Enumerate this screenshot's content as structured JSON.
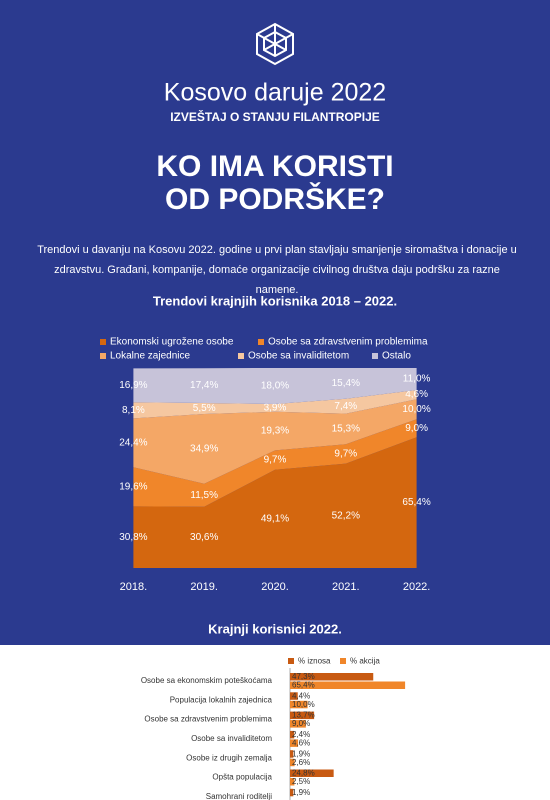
{
  "header": {
    "title": "Kosovo daruje 2022",
    "subtitle": "IZVEŠTAJ O STANJU FILANTROPIJE",
    "headline": [
      "KO IMA KORISTI",
      "OD PODRŠKE?"
    ],
    "intro": "Trendovi u davanju na Kosovu 2022. godine u prvi plan stavljaju smanjenje siromaštva i donacije u zdravstvu. Građani, kompanije, domaće organizacije civilnog društva daju podršku za razne namene."
  },
  "chart_data": [
    {
      "type": "stacked-area",
      "title": "Trendovi krajnjih korisnika 2018 – 2022.",
      "categories": [
        "2018.",
        "2019.",
        "2020.",
        "2021.",
        "2022."
      ],
      "series": [
        {
          "name": "Ekonomski ugrožene osobe",
          "color": "#d4670f",
          "values": [
            30.8,
            30.6,
            49.1,
            52.2,
            65.4
          ],
          "value_labels": [
            "30,8%",
            "30,6%",
            "49,1%",
            "52,2%",
            "65,4%"
          ]
        },
        {
          "name": "Osobe sa zdravstvenim problemima",
          "color": "#f0862a",
          "values": [
            19.6,
            11.5,
            9.7,
            9.7,
            9.0
          ],
          "value_labels": [
            "19,6%",
            "11,5%",
            "9,7%",
            "9,7%",
            "9,0%"
          ]
        },
        {
          "name": "Lokalne zajednice",
          "color": "#f4a766",
          "values": [
            24.4,
            34.9,
            19.3,
            15.3,
            10.0
          ],
          "value_labels": [
            "24,4%",
            "34,9%",
            "19,3%",
            "15,3%",
            "10,0%"
          ]
        },
        {
          "name": "Osobe sa invaliditetom",
          "color": "#f5c7a0",
          "values": [
            8.1,
            5.5,
            3.9,
            7.4,
            4.6
          ],
          "value_labels": [
            "8,1%",
            "5,5%",
            "3,9%",
            "7,4%",
            "4,6%"
          ]
        },
        {
          "name": "Ostalo",
          "color": "#c7c3d9",
          "values": [
            16.9,
            17.4,
            18.0,
            15.4,
            11.0
          ],
          "value_labels": [
            "16,9%",
            "17,4%",
            "18,0%",
            "15,4%",
            "11,0%"
          ]
        }
      ]
    },
    {
      "type": "hbar",
      "title": "Krajnji korisnici 2022.",
      "categories": [
        "Osobe sa ekonomskim poteškoćama",
        "Populacija lokalnih zajednica",
        "Osobe sa zdravstvenim problemima",
        "Osobe sa invaliditetom",
        "Osobe iz drugih zemalja",
        "Opšta populacija",
        "Samohrani roditelji"
      ],
      "series": [
        {
          "name": "% iznosa",
          "color": "#c85a12",
          "values": [
            47.3,
            4.4,
            13.7,
            2.4,
            1.9,
            24.8,
            1.9
          ],
          "value_labels": [
            "47,3%",
            "4,4%",
            "13,7%",
            "2,4%",
            "1,9%",
            "24,8%",
            "1,9%"
          ]
        },
        {
          "name": "% akcija",
          "color": "#f0862a",
          "values": [
            65.4,
            10.0,
            9.0,
            4.6,
            2.6,
            2.5,
            null
          ],
          "value_labels": [
            "65,4%",
            "10,0%",
            "9,0%",
            "4,6%",
            "2,6%",
            "2,5%",
            null
          ]
        }
      ]
    }
  ]
}
